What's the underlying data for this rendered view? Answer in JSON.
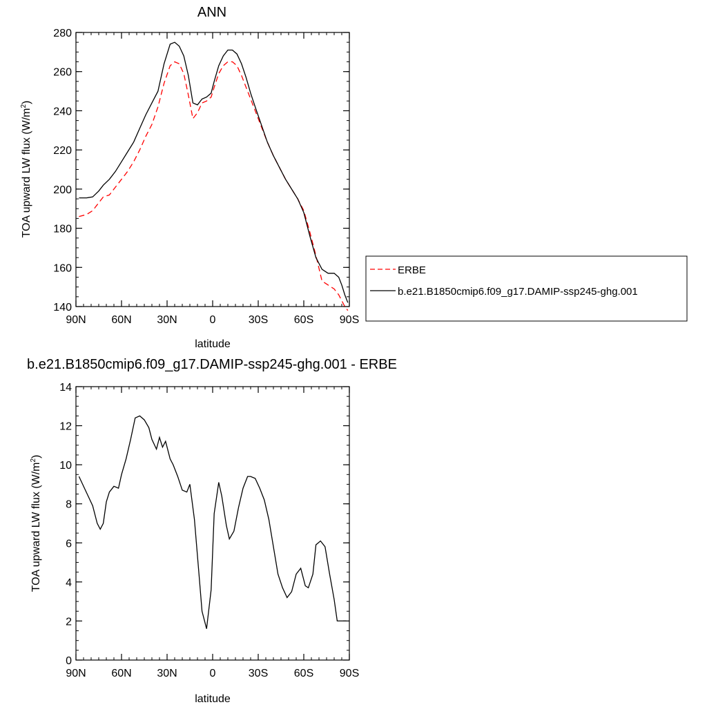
{
  "chart_data": [
    {
      "type": "line",
      "title": "ANN",
      "xlabel": "latitude",
      "ylabel": "TOA upward LW flux (W/m",
      "ylabel_sup": "2",
      "ylabel_end": ")",
      "xlim": [
        90,
        -90
      ],
      "ylim": [
        140,
        280
      ],
      "x_ticks": [
        {
          "value": 90,
          "label": "90N"
        },
        {
          "value": 60,
          "label": "60N"
        },
        {
          "value": 30,
          "label": "30N"
        },
        {
          "value": 0,
          "label": "0"
        },
        {
          "value": -30,
          "label": "30S"
        },
        {
          "value": -60,
          "label": "60S"
        },
        {
          "value": -90,
          "label": "90S"
        }
      ],
      "y_ticks": [
        140,
        160,
        180,
        200,
        220,
        240,
        260,
        280
      ],
      "legend_position": "right",
      "series": [
        {
          "name": "ERBE",
          "color": "#ff0000",
          "dashed": true,
          "x": [
            88,
            83,
            79,
            75,
            72,
            68,
            64,
            60,
            56,
            52,
            48,
            44,
            40,
            36,
            32,
            28,
            25,
            22,
            19,
            16,
            13,
            10,
            7,
            4,
            1,
            -1,
            -4,
            -7,
            -10,
            -13,
            -16,
            -19,
            -22,
            -25,
            -28,
            -32,
            -36,
            -40,
            -44,
            -48,
            -52,
            -56,
            -60,
            -64,
            -68,
            -72,
            -76,
            -80,
            -83,
            -85,
            -87,
            -89
          ],
          "values": [
            186,
            187,
            189,
            193,
            196,
            197,
            201,
            205,
            209,
            214,
            220,
            227,
            233,
            242,
            254,
            263,
            265,
            264,
            259,
            248,
            236,
            239,
            244,
            245,
            247,
            252,
            259,
            263,
            265,
            265,
            263,
            258,
            252,
            246,
            240,
            232,
            224,
            217,
            211,
            205,
            200,
            195,
            189,
            178,
            166,
            153,
            151,
            149,
            146,
            143,
            140,
            138
          ]
        },
        {
          "name": "b.e21.B1850cmip6.f09_g17.DAMIP-ssp245-ghg.001",
          "color": "#000000",
          "dashed": false,
          "x": [
            88,
            83,
            79,
            75,
            72,
            68,
            64,
            60,
            56,
            52,
            48,
            44,
            40,
            36,
            32,
            28,
            25,
            22,
            19,
            16,
            13,
            10,
            7,
            4,
            1,
            -1,
            -4,
            -7,
            -10,
            -13,
            -16,
            -19,
            -22,
            -25,
            -28,
            -32,
            -36,
            -40,
            -44,
            -48,
            -52,
            -56,
            -60,
            -64,
            -68,
            -72,
            -76,
            -80,
            -83,
            -85,
            -87,
            -89
          ],
          "values": [
            195.5,
            195.5,
            196,
            199,
            202,
            205,
            209,
            214,
            219,
            224,
            231,
            238,
            244,
            250,
            264,
            274,
            275,
            273,
            268,
            258,
            244,
            243,
            246,
            247,
            249,
            255,
            263,
            268,
            271,
            271,
            269,
            264,
            257,
            249,
            242,
            233,
            224,
            217,
            211,
            205,
            200,
            195,
            188,
            176,
            165,
            159,
            157,
            157,
            155,
            151,
            146,
            142
          ]
        }
      ]
    },
    {
      "type": "line",
      "title": "b.e21.B1850cmip6.f09_g17.DAMIP-ssp245-ghg.001 - ERBE",
      "xlabel": "latitude",
      "ylabel": "TOA upward LW flux (W/m",
      "ylabel_sup": "2",
      "ylabel_end": ")",
      "xlim": [
        90,
        -90
      ],
      "ylim": [
        0,
        14
      ],
      "x_ticks": [
        {
          "value": 90,
          "label": "90N"
        },
        {
          "value": 60,
          "label": "60N"
        },
        {
          "value": 30,
          "label": "30N"
        },
        {
          "value": 0,
          "label": "0"
        },
        {
          "value": -30,
          "label": "30S"
        },
        {
          "value": -60,
          "label": "60S"
        },
        {
          "value": -90,
          "label": "90S"
        }
      ],
      "y_ticks": [
        0,
        2,
        4,
        6,
        8,
        10,
        12,
        14
      ],
      "series": [
        {
          "color": "#000000",
          "dashed": false,
          "x": [
            88,
            82,
            79,
            76,
            74,
            72,
            70,
            68,
            65,
            62,
            60,
            57,
            54,
            51,
            48,
            45,
            42,
            40,
            37,
            35,
            33,
            31,
            28,
            26,
            23,
            20,
            17,
            15,
            12,
            9,
            7,
            4,
            1,
            -1,
            -4,
            -6,
            -9,
            -11,
            -14,
            -17,
            -20,
            -23,
            -25,
            -28,
            -31,
            -34,
            -37,
            -40,
            -43,
            -46,
            -49,
            -52,
            -55,
            -58,
            -61,
            -63,
            -66,
            -68,
            -71,
            -74,
            -77,
            -80,
            -82,
            -85,
            -88
          ],
          "values": [
            9.4,
            8.4,
            7.9,
            7.0,
            6.7,
            7.0,
            8.1,
            8.6,
            8.9,
            8.8,
            9.5,
            10.3,
            11.3,
            12.4,
            12.5,
            12.3,
            11.9,
            11.3,
            10.8,
            11.4,
            10.9,
            11.2,
            10.3,
            10.0,
            9.4,
            8.7,
            8.6,
            9.0,
            7.2,
            4.4,
            2.5,
            1.6,
            3.6,
            7.5,
            9.1,
            8.4,
            6.9,
            6.2,
            6.6,
            7.8,
            8.8,
            9.4,
            9.4,
            9.3,
            8.8,
            8.2,
            7.2,
            5.8,
            4.4,
            3.7,
            3.2,
            3.5,
            4.4,
            4.7,
            3.8,
            3.7,
            4.4,
            5.9,
            6.1,
            5.8,
            4.4,
            3.1,
            2.0,
            2.0,
            2.0
          ]
        }
      ]
    }
  ]
}
